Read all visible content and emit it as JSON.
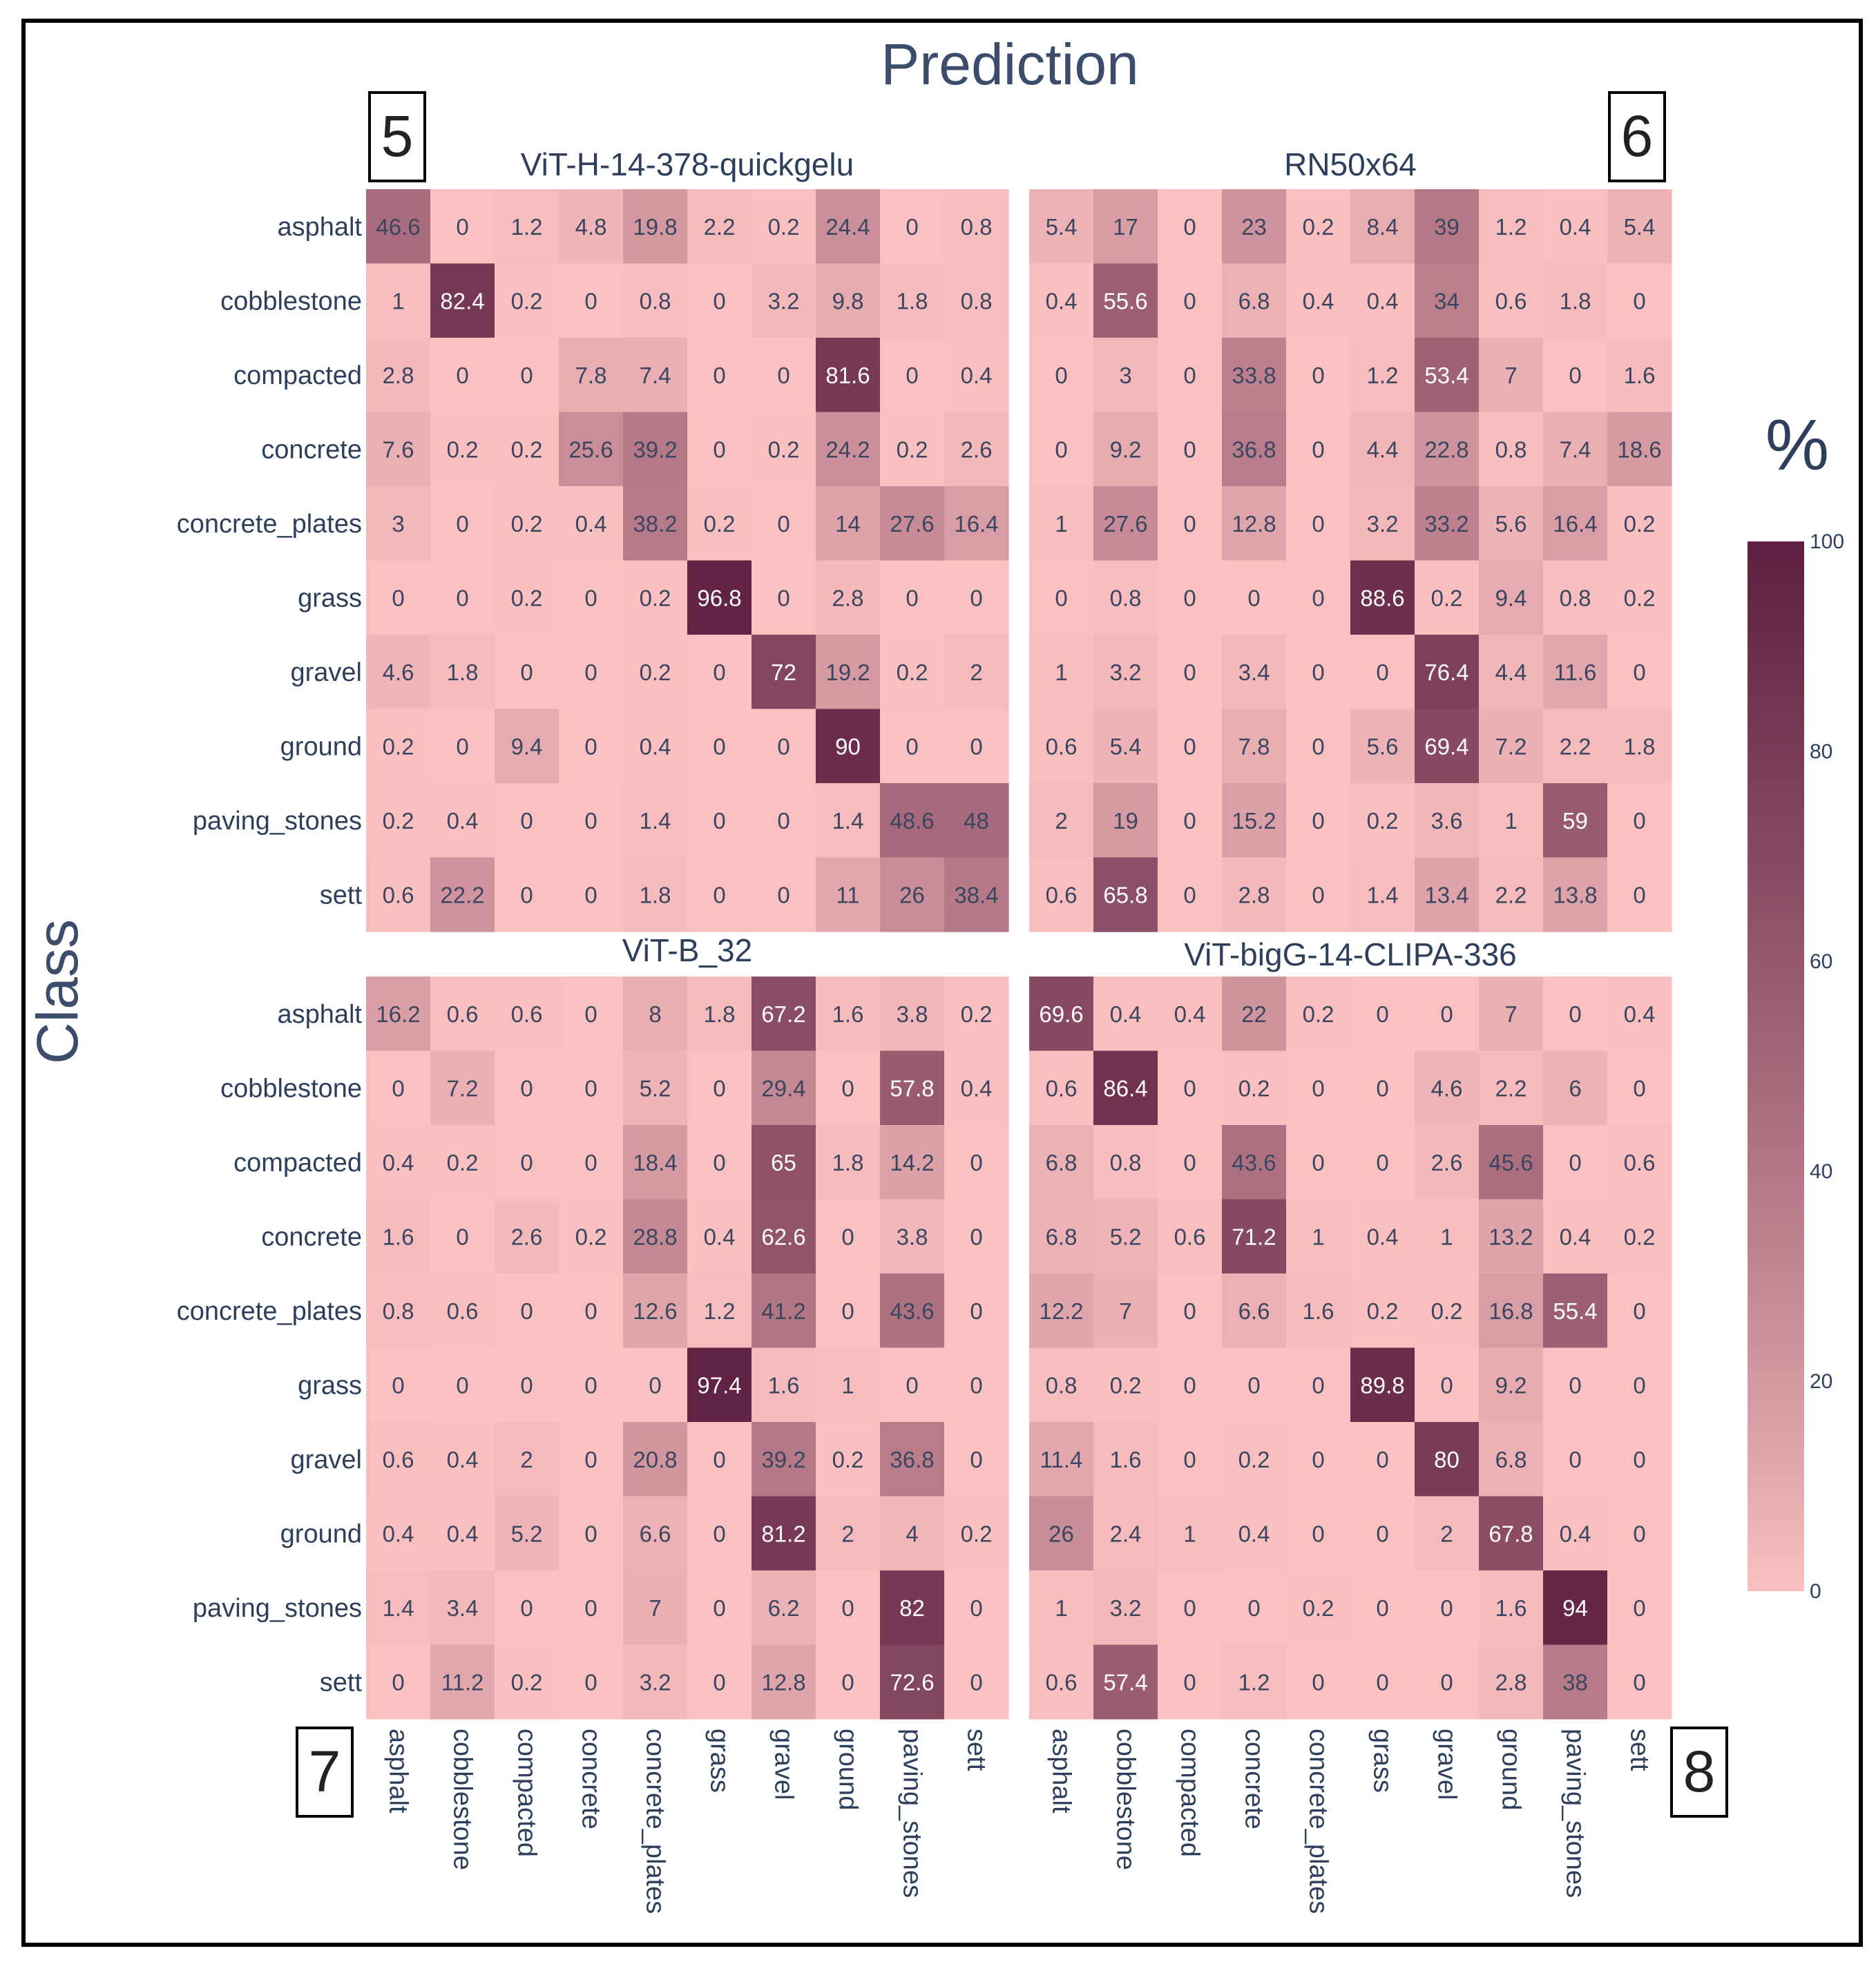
{
  "figure": {
    "x_title": "Prediction",
    "y_title": "Class",
    "colorbar": {
      "title": "%",
      "ticks": [
        0,
        20,
        40,
        60,
        80,
        100
      ],
      "range": [
        0,
        100
      ],
      "colors": [
        "#fbc1c1",
        "#5e1f40"
      ]
    }
  },
  "chart_data": [
    {
      "type": "heatmap",
      "panel_number": "5",
      "title": "ViT-H-14-378-quickgelu",
      "rows": [
        "asphalt",
        "cobblestone",
        "compacted",
        "concrete",
        "concrete_plates",
        "grass",
        "gravel",
        "ground",
        "paving_stones",
        "sett"
      ],
      "cols": [
        "asphalt",
        "cobblestone",
        "compacted",
        "concrete",
        "concrete_plates",
        "grass",
        "gravel",
        "ground",
        "paving_stones",
        "sett"
      ],
      "values": [
        [
          46.6,
          0,
          1.2,
          4.8,
          19.8,
          2.2,
          0.2,
          24.4,
          0,
          0.8
        ],
        [
          1,
          82.4,
          0.2,
          0,
          0.8,
          0,
          3.2,
          9.8,
          1.8,
          0.8
        ],
        [
          2.8,
          0,
          0,
          7.8,
          7.4,
          0,
          0,
          81.6,
          0,
          0.4
        ],
        [
          7.6,
          0.2,
          0.2,
          25.6,
          39.2,
          0,
          0.2,
          24.2,
          0.2,
          2.6
        ],
        [
          3,
          0,
          0.2,
          0.4,
          38.2,
          0.2,
          0,
          14,
          27.6,
          16.4
        ],
        [
          0,
          0,
          0.2,
          0,
          0.2,
          96.8,
          0,
          2.8,
          0,
          0
        ],
        [
          4.6,
          1.8,
          0,
          0,
          0.2,
          0,
          72,
          19.2,
          0.2,
          2
        ],
        [
          0.2,
          0,
          9.4,
          0,
          0.4,
          0,
          0,
          90,
          0,
          0
        ],
        [
          0.2,
          0.4,
          0,
          0,
          1.4,
          0,
          0,
          1.4,
          48.6,
          48
        ],
        [
          0.6,
          22.2,
          0,
          0,
          1.8,
          0,
          0,
          11,
          26,
          38.4
        ]
      ]
    },
    {
      "type": "heatmap",
      "panel_number": "6",
      "title": "RN50x64",
      "rows": [
        "asphalt",
        "cobblestone",
        "compacted",
        "concrete",
        "concrete_plates",
        "grass",
        "gravel",
        "ground",
        "paving_stones",
        "sett"
      ],
      "cols": [
        "asphalt",
        "cobblestone",
        "compacted",
        "concrete",
        "concrete_plates",
        "grass",
        "gravel",
        "ground",
        "paving_stones",
        "sett"
      ],
      "values": [
        [
          5.4,
          17,
          0,
          23,
          0.2,
          8.4,
          39,
          1.2,
          0.4,
          5.4
        ],
        [
          0.4,
          55.6,
          0,
          6.8,
          0.4,
          0.4,
          34,
          0.6,
          1.8,
          0
        ],
        [
          0,
          3,
          0,
          33.8,
          0,
          1.2,
          53.4,
          7,
          0,
          1.6
        ],
        [
          0,
          9.2,
          0,
          36.8,
          0,
          4.4,
          22.8,
          0.8,
          7.4,
          18.6
        ],
        [
          1,
          27.6,
          0,
          12.8,
          0,
          3.2,
          33.2,
          5.6,
          16.4,
          0.2
        ],
        [
          0,
          0.8,
          0,
          0,
          0,
          88.6,
          0.2,
          9.4,
          0.8,
          0.2
        ],
        [
          1,
          3.2,
          0,
          3.4,
          0,
          0,
          76.4,
          4.4,
          11.6,
          0
        ],
        [
          0.6,
          5.4,
          0,
          7.8,
          0,
          5.6,
          69.4,
          7.2,
          2.2,
          1.8
        ],
        [
          2,
          19,
          0,
          15.2,
          0,
          0.2,
          3.6,
          1,
          59,
          0
        ],
        [
          0.6,
          65.8,
          0,
          2.8,
          0,
          1.4,
          13.4,
          2.2,
          13.8,
          0
        ]
      ]
    },
    {
      "type": "heatmap",
      "panel_number": "7",
      "title": "ViT-B_32",
      "rows": [
        "asphalt",
        "cobblestone",
        "compacted",
        "concrete",
        "concrete_plates",
        "grass",
        "gravel",
        "ground",
        "paving_stones",
        "sett"
      ],
      "cols": [
        "asphalt",
        "cobblestone",
        "compacted",
        "concrete",
        "concrete_plates",
        "grass",
        "gravel",
        "ground",
        "paving_stones",
        "sett"
      ],
      "values": [
        [
          16.2,
          0.6,
          0.6,
          0,
          8,
          1.8,
          67.2,
          1.6,
          3.8,
          0.2
        ],
        [
          0,
          7.2,
          0,
          0,
          5.2,
          0,
          29.4,
          0,
          57.8,
          0.4
        ],
        [
          0.4,
          0.2,
          0,
          0,
          18.4,
          0,
          65,
          1.8,
          14.2,
          0
        ],
        [
          1.6,
          0,
          2.6,
          0.2,
          28.8,
          0.4,
          62.6,
          0,
          3.8,
          0
        ],
        [
          0.8,
          0.6,
          0,
          0,
          12.6,
          1.2,
          41.2,
          0,
          43.6,
          0
        ],
        [
          0,
          0,
          0,
          0,
          0,
          97.4,
          1.6,
          1,
          0,
          0
        ],
        [
          0.6,
          0.4,
          2,
          0,
          20.8,
          0,
          39.2,
          0.2,
          36.8,
          0
        ],
        [
          0.4,
          0.4,
          5.2,
          0,
          6.6,
          0,
          81.2,
          2,
          4,
          0.2
        ],
        [
          1.4,
          3.4,
          0,
          0,
          7,
          0,
          6.2,
          0,
          82,
          0
        ],
        [
          0,
          11.2,
          0.2,
          0,
          3.2,
          0,
          12.8,
          0,
          72.6,
          0
        ]
      ]
    },
    {
      "type": "heatmap",
      "panel_number": "8",
      "title": "ViT-bigG-14-CLIPA-336",
      "rows": [
        "asphalt",
        "cobblestone",
        "compacted",
        "concrete",
        "concrete_plates",
        "grass",
        "gravel",
        "ground",
        "paving_stones",
        "sett"
      ],
      "cols": [
        "asphalt",
        "cobblestone",
        "compacted",
        "concrete",
        "concrete_plates",
        "grass",
        "gravel",
        "ground",
        "paving_stones",
        "sett"
      ],
      "values": [
        [
          69.6,
          0.4,
          0.4,
          22,
          0.2,
          0,
          0,
          7,
          0,
          0.4
        ],
        [
          0.6,
          86.4,
          0,
          0.2,
          0,
          0,
          4.6,
          2.2,
          6,
          0
        ],
        [
          6.8,
          0.8,
          0,
          43.6,
          0,
          0,
          2.6,
          45.6,
          0,
          0.6
        ],
        [
          6.8,
          5.2,
          0.6,
          71.2,
          1,
          0.4,
          1,
          13.2,
          0.4,
          0.2
        ],
        [
          12.2,
          7,
          0,
          6.6,
          1.6,
          0.2,
          0.2,
          16.8,
          55.4,
          0
        ],
        [
          0.8,
          0.2,
          0,
          0,
          0,
          89.8,
          0,
          9.2,
          0,
          0
        ],
        [
          11.4,
          1.6,
          0,
          0.2,
          0,
          0,
          80,
          6.8,
          0,
          0
        ],
        [
          26,
          2.4,
          1,
          0.4,
          0,
          0,
          2,
          67.8,
          0.4,
          0
        ],
        [
          1,
          3.2,
          0,
          0,
          0.2,
          0,
          0,
          1.6,
          94,
          0
        ],
        [
          0.6,
          57.4,
          0,
          1.2,
          0,
          0,
          0,
          2.8,
          38,
          0
        ]
      ]
    }
  ]
}
